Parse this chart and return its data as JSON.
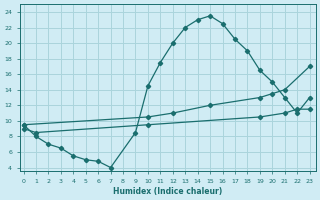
{
  "xlabel": "Humidex (Indice chaleur)",
  "bg_color": "#d0ecf4",
  "grid_color": "#aad4dc",
  "line_color": "#1a6e6e",
  "xlim": [
    -0.3,
    23.5
  ],
  "ylim": [
    3.5,
    25
  ],
  "xticks": [
    0,
    1,
    2,
    3,
    4,
    5,
    6,
    7,
    8,
    9,
    10,
    11,
    12,
    13,
    14,
    15,
    16,
    17,
    18,
    19,
    20,
    21,
    22,
    23
  ],
  "yticks": [
    4,
    6,
    8,
    10,
    12,
    14,
    16,
    18,
    20,
    22,
    24
  ],
  "line1_x": [
    0,
    1,
    2,
    3,
    4,
    5,
    6,
    7,
    9,
    10,
    11,
    12,
    13,
    14,
    15,
    16,
    17,
    18,
    19,
    20,
    21,
    22,
    23
  ],
  "line1_y": [
    9.5,
    8.0,
    7.0,
    6.5,
    5.5,
    5.0,
    4.8,
    4.0,
    8.5,
    14.5,
    17.5,
    20.0,
    22.0,
    23.0,
    23.5,
    22.5,
    20.5,
    19.0,
    16.5,
    15.0,
    13.0,
    11.0,
    13.0
  ],
  "line2_x": [
    0,
    10,
    12,
    15,
    19,
    20,
    21,
    23
  ],
  "line2_y": [
    9.5,
    10.5,
    11.0,
    12.0,
    13.0,
    13.5,
    14.0,
    17.0
  ],
  "line3_x": [
    0,
    1,
    10,
    19,
    21,
    22,
    23
  ],
  "line3_y": [
    9.0,
    8.5,
    9.5,
    10.5,
    11.0,
    11.5,
    11.5
  ]
}
